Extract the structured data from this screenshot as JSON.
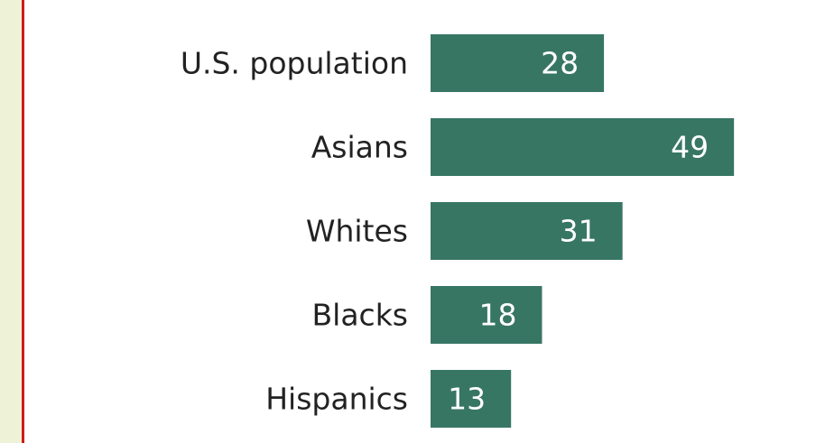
{
  "chart_data": {
    "type": "bar",
    "orientation": "horizontal",
    "categories": [
      "U.S. population",
      "Asians",
      "Whites",
      "Blacks",
      "Hispanics"
    ],
    "values": [
      28,
      49,
      31,
      18,
      13
    ],
    "title": "",
    "xlabel": "",
    "ylabel": "",
    "xlim": [
      0,
      60
    ],
    "grid": false,
    "data_labels": true
  },
  "colors": {
    "bar": "#387664",
    "bar_label": "#ffffff",
    "category_label": "#222222",
    "left_rule": "#d11a1a",
    "left_panel": "#eef3d8"
  }
}
